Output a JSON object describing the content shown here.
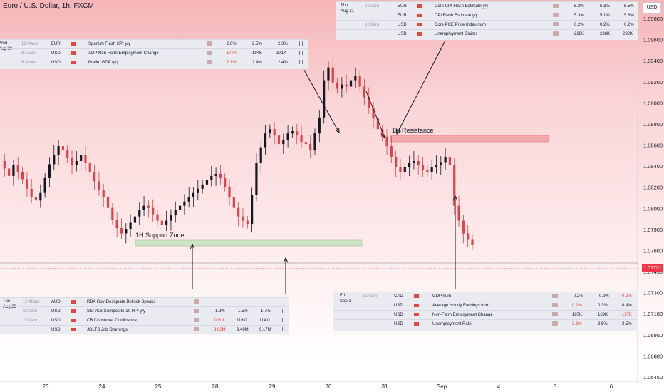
{
  "chart_data": {
    "type": "candlestick",
    "title": "Euro / U.S. Dollar, 1h, FXCM",
    "currency_button": "USD",
    "last_price": "1.07731",
    "y_ticks": [
      "1.09800",
      "1.09600",
      "1.09400",
      "1.09200",
      "1.09000",
      "1.08800",
      "1.08600",
      "1.08400",
      "1.08200",
      "1.08000",
      "1.07900",
      "1.07600",
      "1.07450",
      "1.07300",
      "1.07180",
      "1.06950",
      "1.06880",
      "1.06450"
    ],
    "ylim": [
      1.0645,
      1.099
    ],
    "x_ticks": [
      "23",
      "24",
      "25",
      "28",
      "29",
      "30",
      "31",
      "Sep",
      "4",
      "5",
      "6"
    ],
    "zones": [
      {
        "label": "1H Support Zone",
        "kind": "support",
        "color": "#cfe3c6"
      },
      {
        "label": "1H Resistance",
        "kind": "resistance",
        "color": "#f4a9ad"
      }
    ],
    "ohlc_path": [
      1.0852,
      1.0845,
      1.0838,
      1.0848,
      1.0842,
      1.0835,
      1.0826,
      1.0818,
      1.0815,
      1.0822,
      1.0836,
      1.0849,
      1.0858,
      1.0866,
      1.0862,
      1.0855,
      1.0848,
      1.0852,
      1.0858,
      1.085,
      1.0842,
      1.0833,
      1.0825,
      1.0818,
      1.0808,
      1.0797,
      1.0789,
      1.0784,
      1.0788,
      1.0794,
      1.08,
      1.0806,
      1.081,
      1.0808,
      1.0802,
      1.0796,
      1.0792,
      1.0796,
      1.0801,
      1.0806,
      1.081,
      1.0814,
      1.0818,
      1.0822,
      1.0826,
      1.083,
      1.0834,
      1.0838,
      1.084,
      1.0836,
      1.0828,
      1.0818,
      1.0808,
      1.08,
      1.0796,
      1.0793,
      1.082,
      1.085,
      1.0865,
      1.0878,
      1.0882,
      1.0876,
      1.0868,
      1.0872,
      1.0878,
      1.088,
      1.0876,
      1.087,
      1.0868,
      1.0862,
      1.0878,
      1.0893,
      1.0928,
      1.094,
      1.0926,
      1.092,
      1.0924,
      1.0922,
      1.0928,
      1.0932,
      1.0922,
      1.0912,
      1.0902,
      1.0892,
      1.0882,
      1.0875,
      1.0866,
      1.0856,
      1.0846,
      1.0842,
      1.0846,
      1.085,
      1.0852,
      1.0848,
      1.0844,
      1.0842,
      1.0846,
      1.0848,
      1.0851,
      1.0856,
      1.0848,
      1.081,
      1.0796,
      1.0784,
      1.0778,
      1.0773
    ],
    "calendar": {
      "top_left": {
        "day": "Wed",
        "date": "Aug 30",
        "rows": [
          {
            "time": "12:00am",
            "currency": "EUR",
            "event": "Spanish Flash CPI y/y",
            "actual": "2.6%",
            "forecast": "2.5%",
            "previous": "2.3%"
          },
          {
            "time": "8:15am",
            "currency": "USD",
            "event": "ADP Non-Farm Employment Change",
            "actual": "177K",
            "forecast": "194K",
            "previous": "371K"
          },
          {
            "time": "8:30am",
            "currency": "USD",
            "event": "Prelim GDP q/q",
            "actual": "2.1%",
            "forecast": "2.4%",
            "previous": "2.4%"
          }
        ]
      },
      "top_right": {
        "day": "Thu",
        "date": "Aug 31",
        "rows": [
          {
            "time": "2:00am",
            "currency": "EUR",
            "event": "Core CPI Flash Estimate y/y",
            "actual": "5.3%",
            "forecast": "5.3%",
            "previous": "5.5%"
          },
          {
            "time": "",
            "currency": "EUR",
            "event": "CPI Flash Estimate y/y",
            "actual": "5.3%",
            "forecast": "5.1%",
            "previous": "5.3%"
          },
          {
            "time": "8:30am",
            "currency": "USD",
            "event": "Core PCE Price Index m/m",
            "actual": "0.2%",
            "forecast": "0.2%",
            "previous": "0.2%"
          },
          {
            "time": "",
            "currency": "USD",
            "event": "Unemployment Claims",
            "actual": "228K",
            "forecast": "236K",
            "previous": "232K"
          }
        ]
      },
      "bottom_left": {
        "day": "Tue",
        "date": "Aug 29",
        "rows": [
          {
            "time": "12:40am",
            "currency": "AUD",
            "event": "RBA Gov-Designate Bullock Speaks",
            "actual": "",
            "forecast": "",
            "previous": ""
          },
          {
            "time": "6:00am",
            "currency": "USD",
            "event": "S&P/CS Composite-20 HPI y/y",
            "actual": "-1.2%",
            "forecast": "-1.5%",
            "previous": "-1.7%"
          },
          {
            "time": "7:00am",
            "currency": "USD",
            "event": "CB Consumer Confidence",
            "actual": "106.1",
            "forecast": "116.0",
            "previous": "114.0"
          },
          {
            "time": "",
            "currency": "USD",
            "event": "JOLTS Job Openings",
            "actual": "8.83M",
            "forecast": "9.49M",
            "previous": "9.17M"
          }
        ]
      },
      "bottom_right": {
        "day": "Fri",
        "date": "Sep 1",
        "rows": [
          {
            "time": "5:30am",
            "currency": "CAD",
            "event": "GDP m/m",
            "actual": "-0.2%",
            "forecast": "-0.2%",
            "previous": "0.2%"
          },
          {
            "time": "",
            "currency": "USD",
            "event": "Average Hourly Earnings m/m",
            "actual": "0.2%",
            "forecast": "0.3%",
            "previous": "0.4%"
          },
          {
            "time": "",
            "currency": "USD",
            "event": "Non-Farm Employment Change",
            "actual": "187K",
            "forecast": "169K",
            "previous": "157K"
          },
          {
            "time": "",
            "currency": "USD",
            "event": "Unemployment Rate",
            "actual": "3.8%",
            "forecast": "3.5%",
            "previous": "3.5%"
          }
        ]
      }
    }
  },
  "colors": {
    "up": "#131722",
    "down": "#e0414b",
    "price_line": "#e0414b"
  }
}
